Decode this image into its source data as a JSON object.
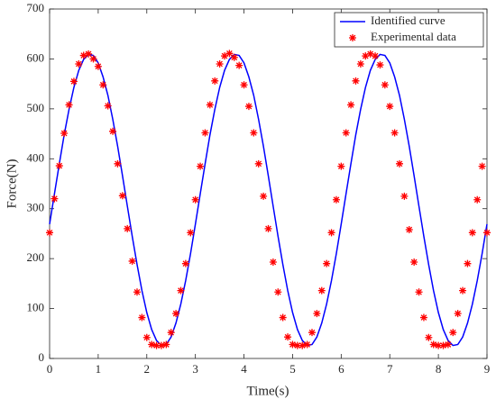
{
  "chart_data": {
    "type": "line",
    "x_label": "Time(s)",
    "y_label": "Force(N)",
    "x": [
      0,
      0.1,
      0.2,
      0.3,
      0.4,
      0.5,
      0.6,
      0.7,
      0.8,
      0.9,
      1,
      1.1,
      1.2,
      1.3,
      1.4,
      1.5,
      1.6,
      1.7,
      1.8,
      1.9,
      2,
      2.1,
      2.2,
      2.3,
      2.4,
      2.5,
      2.6,
      2.7,
      2.8,
      2.9,
      3,
      3.1,
      3.2,
      3.3,
      3.4,
      3.5,
      3.6,
      3.7,
      3.8,
      3.9,
      4,
      4.1,
      4.2,
      4.3,
      4.4,
      4.5,
      4.6,
      4.7,
      4.8,
      4.9,
      5,
      5.1,
      5.2,
      5.3,
      5.4,
      5.5,
      5.6,
      5.7,
      5.8,
      5.9,
      6,
      6.1,
      6.2,
      6.3,
      6.4,
      6.5,
      6.6,
      6.7,
      6.8,
      6.9,
      7,
      7.1,
      7.2,
      7.3,
      7.4,
      7.5,
      7.6,
      7.7,
      7.8,
      7.9,
      8,
      8.1,
      8.2,
      8.3,
      8.4,
      8.5,
      8.6,
      8.7,
      8.8,
      8.9,
      9
    ],
    "series": [
      {
        "name": "Identified curve",
        "color": "#0000ff",
        "marker": "none",
        "values": [
          269,
          330,
          390,
          448,
          499,
          543,
          577,
          599,
          609,
          607,
          592,
          564,
          527,
          479,
          425,
          366,
          305,
          245,
          188,
          136,
          92,
          58,
          36,
          26,
          28,
          43,
          71,
          109,
          156,
          210,
          269,
          330,
          390,
          448,
          499,
          543,
          577,
          599,
          609,
          607,
          592,
          564,
          527,
          479,
          425,
          366,
          305,
          245,
          188,
          136,
          92,
          58,
          36,
          26,
          28,
          43,
          71,
          109,
          156,
          210,
          269,
          330,
          390,
          448,
          499,
          543,
          577,
          599,
          609,
          607,
          592,
          564,
          527,
          479,
          425,
          366,
          305,
          245,
          188,
          136,
          92,
          58,
          36,
          26,
          28,
          43,
          71,
          109,
          156,
          210,
          269
        ]
      },
      {
        "name": "Experimental data",
        "color": "#ff0000",
        "marker": "asterisk",
        "values": [
          252,
          320,
          386,
          451,
          508,
          555,
          590,
          607,
          610,
          600,
          585,
          548,
          506,
          455,
          390,
          326,
          260,
          195,
          133,
          82,
          42,
          28,
          26,
          26,
          28,
          52,
          90,
          136,
          190,
          252,
          318,
          385,
          452,
          508,
          556,
          590,
          606,
          611,
          603,
          587,
          548,
          505,
          452,
          390,
          325,
          260,
          193,
          133,
          82,
          43,
          28,
          26,
          26,
          28,
          52,
          90,
          136,
          190,
          252,
          318,
          385,
          452,
          508,
          556,
          590,
          606,
          610,
          606,
          588,
          548,
          505,
          452,
          390,
          325,
          258,
          193,
          133,
          82,
          42,
          28,
          26,
          26,
          28,
          52,
          90,
          136,
          190,
          252,
          318,
          385,
          252
        ]
      }
    ],
    "xlim": [
      0,
      9
    ],
    "xticks": [
      0,
      1,
      2,
      3,
      4,
      5,
      6,
      7,
      8,
      9
    ],
    "ylim": [
      0,
      700
    ],
    "yticks": [
      0,
      100,
      200,
      300,
      400,
      500,
      600,
      700
    ],
    "legend": "top-right",
    "grid": false
  }
}
